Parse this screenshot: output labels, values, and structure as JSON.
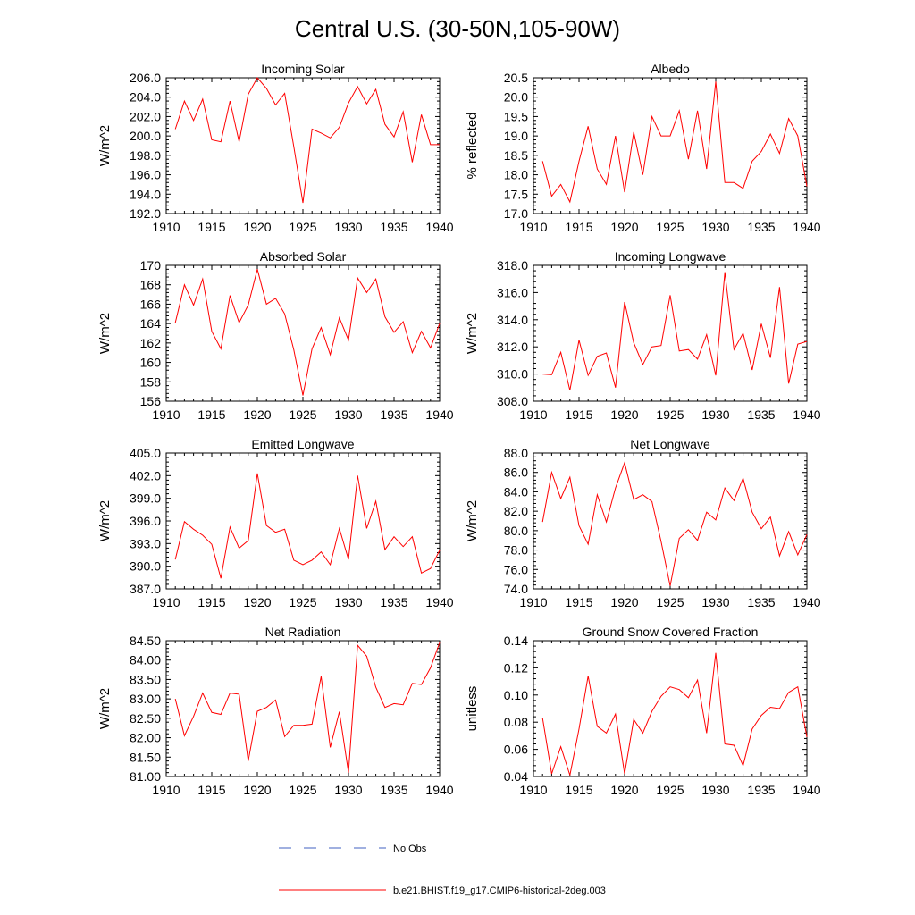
{
  "title": "Central U.S. (30-50N,105-90W)",
  "legend": [
    {
      "label": "No Obs",
      "color": "#4060c0",
      "style": "dashed"
    },
    {
      "label": "b.e21.BHIST.f19_g17.CMIP6-historical-2deg.003",
      "color": "#ff0000",
      "style": "solid"
    }
  ],
  "chart_data": [
    {
      "type": "line",
      "title": "Incoming Solar",
      "ylabel": "W/m^2",
      "xlim": [
        1910,
        1940
      ],
      "xticks": [
        1910,
        1915,
        1920,
        1925,
        1930,
        1935,
        1940
      ],
      "ylim": [
        192,
        206
      ],
      "yticks": [
        192,
        194,
        196,
        198,
        200,
        202,
        204,
        206
      ],
      "ydecimals": 1,
      "x": [
        1911,
        1912,
        1913,
        1914,
        1915,
        1916,
        1917,
        1918,
        1919,
        1920,
        1921,
        1922,
        1923,
        1924,
        1925,
        1926,
        1927,
        1928,
        1929,
        1930,
        1931,
        1932,
        1933,
        1934,
        1935,
        1936,
        1937,
        1938,
        1939,
        1940
      ],
      "series": [
        {
          "values": [
            200.7,
            203.6,
            201.6,
            203.8,
            199.6,
            199.4,
            203.6,
            199.4,
            204.3,
            206.0,
            204.9,
            203.2,
            204.4,
            198.9,
            193.1,
            200.7,
            200.3,
            199.8,
            200.9,
            203.4,
            205.1,
            203.3,
            204.8,
            201.2,
            199.9,
            202.5,
            197.3,
            202.2,
            199.1,
            199.1
          ]
        }
      ]
    },
    {
      "type": "line",
      "title": "Albedo",
      "ylabel": "% reflected",
      "xlim": [
        1910,
        1940
      ],
      "xticks": [
        1910,
        1915,
        1920,
        1925,
        1930,
        1935,
        1940
      ],
      "ylim": [
        17.0,
        20.5
      ],
      "yticks": [
        17.0,
        17.5,
        18.0,
        18.5,
        19.0,
        19.5,
        20.0,
        20.5
      ],
      "ydecimals": 1,
      "x": [
        1911,
        1912,
        1913,
        1914,
        1915,
        1916,
        1917,
        1918,
        1919,
        1920,
        1921,
        1922,
        1923,
        1924,
        1925,
        1926,
        1927,
        1928,
        1929,
        1930,
        1931,
        1932,
        1933,
        1934,
        1935,
        1936,
        1937,
        1938,
        1939,
        1940
      ],
      "series": [
        {
          "values": [
            18.35,
            17.45,
            17.75,
            17.3,
            18.35,
            19.25,
            18.15,
            17.75,
            19.0,
            17.55,
            19.1,
            18.0,
            19.5,
            19.0,
            19.0,
            19.65,
            18.4,
            19.65,
            18.15,
            20.4,
            17.8,
            17.8,
            17.65,
            18.35,
            18.6,
            19.05,
            18.55,
            19.45,
            19.0,
            17.7
          ]
        }
      ]
    },
    {
      "type": "line",
      "title": "Absorbed Solar",
      "ylabel": "W/m^2",
      "xlim": [
        1910,
        1940
      ],
      "xticks": [
        1910,
        1915,
        1920,
        1925,
        1930,
        1935,
        1940
      ],
      "ylim": [
        156,
        170
      ],
      "yticks": [
        156,
        158,
        160,
        162,
        164,
        166,
        168,
        170
      ],
      "ydecimals": 0,
      "x": [
        1911,
        1912,
        1913,
        1914,
        1915,
        1916,
        1917,
        1918,
        1919,
        1920,
        1921,
        1922,
        1923,
        1924,
        1925,
        1926,
        1927,
        1928,
        1929,
        1930,
        1931,
        1932,
        1933,
        1934,
        1935,
        1936,
        1937,
        1938,
        1939,
        1940
      ],
      "series": [
        {
          "values": [
            164.1,
            168.0,
            165.9,
            168.6,
            163.2,
            161.4,
            166.9,
            164.1,
            165.9,
            169.6,
            166.0,
            166.6,
            165.0,
            161.3,
            156.6,
            161.4,
            163.6,
            160.8,
            164.6,
            162.3,
            168.7,
            167.2,
            168.6,
            164.7,
            163.1,
            164.2,
            161.0,
            163.2,
            161.5,
            164.0
          ]
        }
      ]
    },
    {
      "type": "line",
      "title": "Incoming Longwave",
      "ylabel": "W/m^2",
      "xlim": [
        1910,
        1940
      ],
      "xticks": [
        1910,
        1915,
        1920,
        1925,
        1930,
        1935,
        1940
      ],
      "ylim": [
        308,
        318
      ],
      "yticks": [
        308,
        310,
        312,
        314,
        316,
        318
      ],
      "ydecimals": 1,
      "x": [
        1911,
        1912,
        1913,
        1914,
        1915,
        1916,
        1917,
        1918,
        1919,
        1920,
        1921,
        1922,
        1923,
        1924,
        1925,
        1926,
        1927,
        1928,
        1929,
        1930,
        1931,
        1932,
        1933,
        1934,
        1935,
        1936,
        1937,
        1938,
        1939,
        1940
      ],
      "series": [
        {
          "values": [
            310.0,
            309.95,
            311.6,
            308.8,
            312.5,
            309.9,
            311.3,
            311.55,
            309.0,
            315.3,
            312.3,
            310.7,
            312.0,
            312.1,
            315.8,
            311.7,
            311.8,
            311.1,
            312.9,
            309.9,
            317.5,
            311.8,
            313.0,
            310.3,
            313.7,
            311.2,
            316.4,
            309.3,
            312.2,
            312.4
          ]
        }
      ]
    },
    {
      "type": "line",
      "title": "Emitted Longwave",
      "ylabel": "W/m^2",
      "xlim": [
        1910,
        1940
      ],
      "xticks": [
        1910,
        1915,
        1920,
        1925,
        1930,
        1935,
        1940
      ],
      "ylim": [
        387,
        405
      ],
      "yticks": [
        387,
        390,
        393,
        396,
        399,
        402,
        405
      ],
      "ydecimals": 1,
      "x": [
        1911,
        1912,
        1913,
        1914,
        1915,
        1916,
        1917,
        1918,
        1919,
        1920,
        1921,
        1922,
        1923,
        1924,
        1925,
        1926,
        1927,
        1928,
        1929,
        1930,
        1931,
        1932,
        1933,
        1934,
        1935,
        1936,
        1937,
        1938,
        1939,
        1940
      ],
      "series": [
        {
          "values": [
            390.9,
            395.9,
            394.9,
            394.1,
            392.9,
            388.4,
            395.2,
            392.4,
            393.4,
            402.3,
            395.4,
            394.5,
            394.9,
            390.8,
            390.2,
            390.8,
            391.9,
            390.2,
            395.0,
            390.9,
            402.0,
            395.0,
            398.6,
            392.2,
            393.9,
            392.6,
            393.9,
            389.1,
            389.7,
            392.1
          ]
        }
      ]
    },
    {
      "type": "line",
      "title": "Net Longwave",
      "ylabel": "W/m^2",
      "xlim": [
        1910,
        1940
      ],
      "xticks": [
        1910,
        1915,
        1920,
        1925,
        1930,
        1935,
        1940
      ],
      "ylim": [
        74,
        88
      ],
      "yticks": [
        74,
        76,
        78,
        80,
        82,
        84,
        86,
        88
      ],
      "ydecimals": 1,
      "x": [
        1911,
        1912,
        1913,
        1914,
        1915,
        1916,
        1917,
        1918,
        1919,
        1920,
        1921,
        1922,
        1923,
        1924,
        1925,
        1926,
        1927,
        1928,
        1929,
        1930,
        1931,
        1932,
        1933,
        1934,
        1935,
        1936,
        1937,
        1938,
        1939,
        1940
      ],
      "series": [
        {
          "values": [
            80.9,
            86.0,
            83.3,
            85.5,
            80.5,
            78.6,
            83.7,
            80.9,
            84.4,
            87.0,
            83.2,
            83.7,
            83.0,
            78.9,
            74.3,
            79.2,
            80.1,
            79.0,
            81.9,
            81.1,
            84.4,
            83.1,
            85.4,
            81.9,
            80.2,
            81.4,
            77.4,
            79.9,
            77.5,
            79.6
          ]
        }
      ]
    },
    {
      "type": "line",
      "title": "Net Radiation",
      "ylabel": "W/m^2",
      "xlim": [
        1910,
        1940
      ],
      "xticks": [
        1910,
        1915,
        1920,
        1925,
        1930,
        1935,
        1940
      ],
      "ylim": [
        81.0,
        84.5
      ],
      "yticks": [
        81.0,
        81.5,
        82.0,
        82.5,
        83.0,
        83.5,
        84.0,
        84.5
      ],
      "ydecimals": 2,
      "x": [
        1911,
        1912,
        1913,
        1914,
        1915,
        1916,
        1917,
        1918,
        1919,
        1920,
        1921,
        1922,
        1923,
        1924,
        1925,
        1926,
        1927,
        1928,
        1929,
        1930,
        1931,
        1932,
        1933,
        1934,
        1935,
        1936,
        1937,
        1938,
        1939,
        1940
      ],
      "series": [
        {
          "values": [
            83.0,
            82.05,
            82.55,
            83.15,
            82.65,
            82.6,
            83.15,
            83.12,
            81.4,
            82.68,
            82.78,
            82.97,
            82.03,
            82.32,
            82.32,
            82.35,
            83.58,
            81.75,
            82.67,
            81.1,
            84.38,
            84.1,
            83.3,
            82.78,
            82.88,
            82.85,
            83.4,
            83.37,
            83.8,
            84.45
          ]
        }
      ]
    },
    {
      "type": "line",
      "title": "Ground Snow Covered Fraction",
      "ylabel": "unitless",
      "xlim": [
        1910,
        1940
      ],
      "xticks": [
        1910,
        1915,
        1920,
        1925,
        1930,
        1935,
        1940
      ],
      "ylim": [
        0.04,
        0.14
      ],
      "yticks": [
        0.04,
        0.06,
        0.08,
        0.1,
        0.12,
        0.14
      ],
      "ydecimals": 2,
      "x": [
        1911,
        1912,
        1913,
        1914,
        1915,
        1916,
        1917,
        1918,
        1919,
        1920,
        1921,
        1922,
        1923,
        1924,
        1925,
        1926,
        1927,
        1928,
        1929,
        1930,
        1931,
        1932,
        1933,
        1934,
        1935,
        1936,
        1937,
        1938,
        1939,
        1940
      ],
      "series": [
        {
          "values": [
            0.083,
            0.042,
            0.062,
            0.041,
            0.075,
            0.114,
            0.077,
            0.072,
            0.086,
            0.042,
            0.082,
            0.072,
            0.088,
            0.099,
            0.106,
            0.104,
            0.098,
            0.111,
            0.072,
            0.131,
            0.064,
            0.063,
            0.048,
            0.075,
            0.085,
            0.091,
            0.09,
            0.102,
            0.106,
            0.069
          ]
        }
      ]
    }
  ]
}
